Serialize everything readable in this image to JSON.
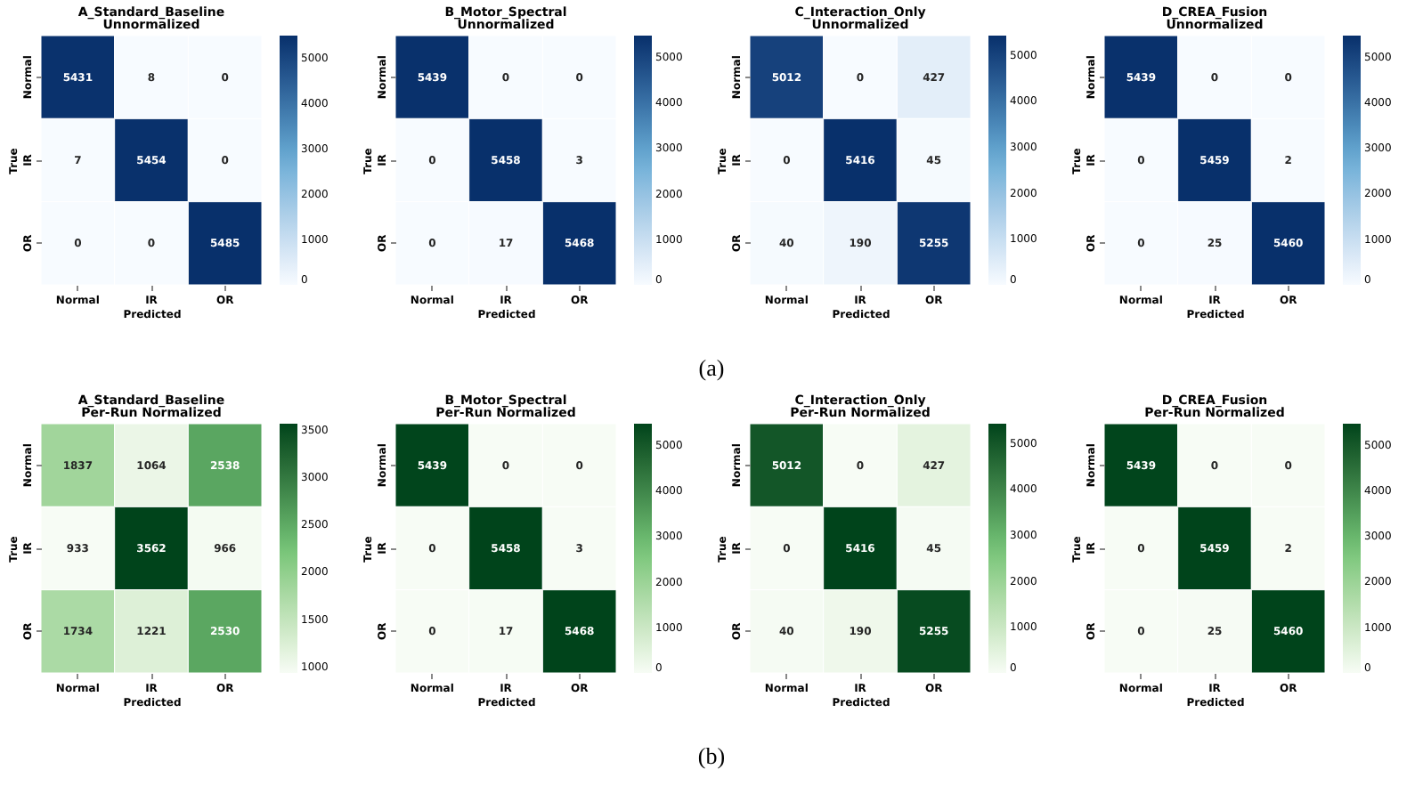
{
  "chart_data": [
    {
      "type": "heatmap",
      "title": "A_Standard_Baseline",
      "subtitle": "Unnormalized",
      "xlabel": "Predicted",
      "ylabel": "True",
      "categories": [
        "Normal",
        "IR",
        "OR"
      ],
      "y_categories": [
        "Normal",
        "IR",
        "OR"
      ],
      "cells": [
        [
          5431,
          8,
          0
        ],
        [
          7,
          5454,
          0
        ],
        [
          0,
          0,
          5485
        ]
      ],
      "clim": [
        0,
        5485
      ],
      "cticks": [
        0,
        1000,
        2000,
        3000,
        4000,
        5000
      ],
      "colors": [
        "#f7fbff",
        "#6baed6",
        "#08306b"
      ],
      "data_labels": true,
      "annotations": [
        "(a)"
      ]
    },
    {
      "type": "heatmap",
      "title": "B_Motor_Spectral",
      "subtitle": "Unnormalized",
      "xlabel": "Predicted",
      "ylabel": "True",
      "categories": [
        "Normal",
        "IR",
        "OR"
      ],
      "y_categories": [
        "Normal",
        "IR",
        "OR"
      ],
      "cells": [
        [
          5439,
          0,
          0
        ],
        [
          0,
          5458,
          3
        ],
        [
          0,
          17,
          5468
        ]
      ],
      "clim": [
        0,
        5468
      ],
      "cticks": [
        0,
        1000,
        2000,
        3000,
        4000,
        5000
      ],
      "colors": [
        "#f7fbff",
        "#6baed6",
        "#08306b"
      ],
      "data_labels": true
    },
    {
      "type": "heatmap",
      "title": "C_Interaction_Only",
      "subtitle": "Unnormalized",
      "xlabel": "Predicted",
      "ylabel": "True",
      "categories": [
        "Normal",
        "IR",
        "OR"
      ],
      "y_categories": [
        "Normal",
        "IR",
        "OR"
      ],
      "cells": [
        [
          5012,
          0,
          427
        ],
        [
          0,
          5416,
          45
        ],
        [
          40,
          190,
          5255
        ]
      ],
      "clim": [
        0,
        5416
      ],
      "cticks": [
        0,
        1000,
        2000,
        3000,
        4000,
        5000
      ],
      "colors": [
        "#f7fbff",
        "#6baed6",
        "#08306b"
      ],
      "data_labels": true
    },
    {
      "type": "heatmap",
      "title": "D_CREA_Fusion",
      "subtitle": "Unnormalized",
      "xlabel": "Predicted",
      "ylabel": "True",
      "categories": [
        "Normal",
        "IR",
        "OR"
      ],
      "y_categories": [
        "Normal",
        "IR",
        "OR"
      ],
      "cells": [
        [
          5439,
          0,
          0
        ],
        [
          0,
          5459,
          2
        ],
        [
          0,
          25,
          5460
        ]
      ],
      "clim": [
        0,
        5460
      ],
      "cticks": [
        0,
        1000,
        2000,
        3000,
        4000,
        5000
      ],
      "colors": [
        "#f7fbff",
        "#6baed6",
        "#08306b"
      ],
      "data_labels": true
    },
    {
      "type": "heatmap",
      "title": "A_Standard_Baseline",
      "subtitle": "Per-Run Normalized",
      "xlabel": "Predicted",
      "ylabel": "True",
      "categories": [
        "Normal",
        "IR",
        "OR"
      ],
      "y_categories": [
        "Normal",
        "IR",
        "OR"
      ],
      "cells": [
        [
          1837,
          1064,
          2538
        ],
        [
          933,
          3562,
          966
        ],
        [
          1734,
          1221,
          2530
        ]
      ],
      "clim": [
        933,
        3562
      ],
      "cticks": [
        1000,
        1500,
        2000,
        2500,
        3000,
        3500
      ],
      "colors": [
        "#f7fcf5",
        "#74c476",
        "#00441b"
      ],
      "data_labels": true,
      "annotations": [
        "(b)"
      ]
    },
    {
      "type": "heatmap",
      "title": "B_Motor_Spectral",
      "subtitle": "Per-Run Normalized",
      "xlabel": "Predicted",
      "ylabel": "True",
      "categories": [
        "Normal",
        "IR",
        "OR"
      ],
      "y_categories": [
        "Normal",
        "IR",
        "OR"
      ],
      "cells": [
        [
          5439,
          0,
          0
        ],
        [
          0,
          5458,
          3
        ],
        [
          0,
          17,
          5468
        ]
      ],
      "clim": [
        0,
        5468
      ],
      "cticks": [
        0,
        1000,
        2000,
        3000,
        4000,
        5000
      ],
      "colors": [
        "#f7fcf5",
        "#74c476",
        "#00441b"
      ],
      "data_labels": true
    },
    {
      "type": "heatmap",
      "title": "C_Interaction_Only",
      "subtitle": "Per-Run Normalized",
      "xlabel": "Predicted",
      "ylabel": "True",
      "categories": [
        "Normal",
        "IR",
        "OR"
      ],
      "y_categories": [
        "Normal",
        "IR",
        "OR"
      ],
      "cells": [
        [
          5012,
          0,
          427
        ],
        [
          0,
          5416,
          45
        ],
        [
          40,
          190,
          5255
        ]
      ],
      "clim": [
        0,
        5416
      ],
      "cticks": [
        0,
        1000,
        2000,
        3000,
        4000,
        5000
      ],
      "colors": [
        "#f7fcf5",
        "#74c476",
        "#00441b"
      ],
      "data_labels": true
    },
    {
      "type": "heatmap",
      "title": "D_CREA_Fusion",
      "subtitle": "Per-Run Normalized",
      "xlabel": "Predicted",
      "ylabel": "True",
      "categories": [
        "Normal",
        "IR",
        "OR"
      ],
      "y_categories": [
        "Normal",
        "IR",
        "OR"
      ],
      "cells": [
        [
          5439,
          0,
          0
        ],
        [
          0,
          5459,
          2
        ],
        [
          0,
          25,
          5460
        ]
      ],
      "clim": [
        0,
        5460
      ],
      "cticks": [
        0,
        1000,
        2000,
        3000,
        4000,
        5000
      ],
      "colors": [
        "#f7fcf5",
        "#74c476",
        "#00441b"
      ],
      "data_labels": true
    }
  ]
}
